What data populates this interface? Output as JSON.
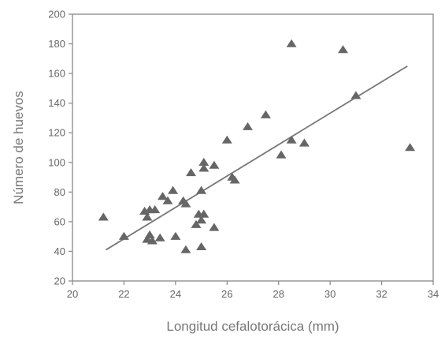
{
  "chart_data": {
    "type": "scatter",
    "title": "",
    "xlabel": "Longitud cefalotorácica (mm)",
    "ylabel": "Número de huevos",
    "xlim": [
      20,
      34
    ],
    "ylim": [
      20,
      200
    ],
    "x_ticks": [
      "20",
      "22",
      "24",
      "26",
      "28",
      "30",
      "32",
      "34"
    ],
    "y_ticks": [
      "20",
      "40",
      "60",
      "80",
      "100",
      "120",
      "140",
      "160",
      "180",
      "200"
    ],
    "grid": false,
    "marker": "triangle",
    "marker_color": "#666666",
    "points": [
      {
        "x": 21.2,
        "y": 63
      },
      {
        "x": 22.0,
        "y": 50
      },
      {
        "x": 22.8,
        "y": 67
      },
      {
        "x": 22.9,
        "y": 63
      },
      {
        "x": 22.9,
        "y": 48
      },
      {
        "x": 23.0,
        "y": 51
      },
      {
        "x": 23.0,
        "y": 68
      },
      {
        "x": 23.1,
        "y": 47
      },
      {
        "x": 23.2,
        "y": 68
      },
      {
        "x": 23.4,
        "y": 49
      },
      {
        "x": 23.5,
        "y": 77
      },
      {
        "x": 23.7,
        "y": 74
      },
      {
        "x": 23.9,
        "y": 81
      },
      {
        "x": 24.0,
        "y": 50
      },
      {
        "x": 24.3,
        "y": 74
      },
      {
        "x": 24.4,
        "y": 72
      },
      {
        "x": 24.4,
        "y": 41
      },
      {
        "x": 24.6,
        "y": 93
      },
      {
        "x": 24.8,
        "y": 58
      },
      {
        "x": 24.9,
        "y": 65
      },
      {
        "x": 25.0,
        "y": 81
      },
      {
        "x": 25.0,
        "y": 61
      },
      {
        "x": 25.0,
        "y": 43
      },
      {
        "x": 25.1,
        "y": 96
      },
      {
        "x": 25.1,
        "y": 100
      },
      {
        "x": 25.1,
        "y": 65
      },
      {
        "x": 25.5,
        "y": 98
      },
      {
        "x": 25.5,
        "y": 56
      },
      {
        "x": 26.0,
        "y": 115
      },
      {
        "x": 26.2,
        "y": 90
      },
      {
        "x": 26.3,
        "y": 88
      },
      {
        "x": 26.8,
        "y": 124
      },
      {
        "x": 27.5,
        "y": 132
      },
      {
        "x": 28.1,
        "y": 105
      },
      {
        "x": 28.5,
        "y": 180
      },
      {
        "x": 28.5,
        "y": 115
      },
      {
        "x": 29.0,
        "y": 113
      },
      {
        "x": 30.5,
        "y": 176
      },
      {
        "x": 31.0,
        "y": 145
      },
      {
        "x": 33.1,
        "y": 110
      }
    ],
    "trendline": {
      "x": [
        21.3,
        33.0
      ],
      "y": [
        41,
        165
      ]
    }
  }
}
